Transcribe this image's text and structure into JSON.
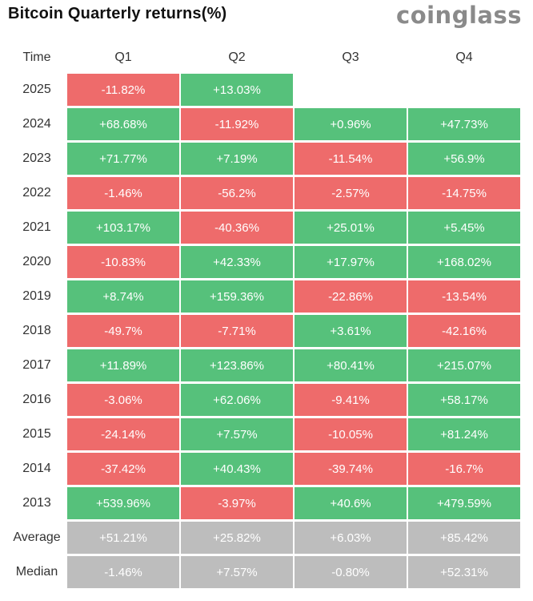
{
  "title": "Bitcoin Quarterly returns(%)",
  "brand": "coinglass",
  "colors": {
    "positive": "#56c17b",
    "negative": "#ee6b6b",
    "stat": "#bdbdbd"
  },
  "chart_data": {
    "type": "table",
    "title": "Bitcoin Quarterly returns(%)",
    "columns": [
      "Time",
      "Q1",
      "Q2",
      "Q3",
      "Q4"
    ],
    "rows": [
      {
        "label": "2025",
        "values": [
          "-11.82%",
          "+13.03%",
          "",
          ""
        ]
      },
      {
        "label": "2024",
        "values": [
          "+68.68%",
          "-11.92%",
          "+0.96%",
          "+47.73%"
        ]
      },
      {
        "label": "2023",
        "values": [
          "+71.77%",
          "+7.19%",
          "-11.54%",
          "+56.9%"
        ]
      },
      {
        "label": "2022",
        "values": [
          "-1.46%",
          "-56.2%",
          "-2.57%",
          "-14.75%"
        ]
      },
      {
        "label": "2021",
        "values": [
          "+103.17%",
          "-40.36%",
          "+25.01%",
          "+5.45%"
        ]
      },
      {
        "label": "2020",
        "values": [
          "-10.83%",
          "+42.33%",
          "+17.97%",
          "+168.02%"
        ]
      },
      {
        "label": "2019",
        "values": [
          "+8.74%",
          "+159.36%",
          "-22.86%",
          "-13.54%"
        ]
      },
      {
        "label": "2018",
        "values": [
          "-49.7%",
          "-7.71%",
          "+3.61%",
          "-42.16%"
        ]
      },
      {
        "label": "2017",
        "values": [
          "+11.89%",
          "+123.86%",
          "+80.41%",
          "+215.07%"
        ]
      },
      {
        "label": "2016",
        "values": [
          "-3.06%",
          "+62.06%",
          "-9.41%",
          "+58.17%"
        ]
      },
      {
        "label": "2015",
        "values": [
          "-24.14%",
          "+7.57%",
          "-10.05%",
          "+81.24%"
        ]
      },
      {
        "label": "2014",
        "values": [
          "-37.42%",
          "+40.43%",
          "-39.74%",
          "-16.7%"
        ]
      },
      {
        "label": "2013",
        "values": [
          "+539.96%",
          "-3.97%",
          "+40.6%",
          "+479.59%"
        ]
      }
    ],
    "summary": [
      {
        "label": "Average",
        "values": [
          "+51.21%",
          "+25.82%",
          "+6.03%",
          "+85.42%"
        ]
      },
      {
        "label": "Median",
        "values": [
          "-1.46%",
          "+7.57%",
          "-0.80%",
          "+52.31%"
        ]
      }
    ]
  }
}
